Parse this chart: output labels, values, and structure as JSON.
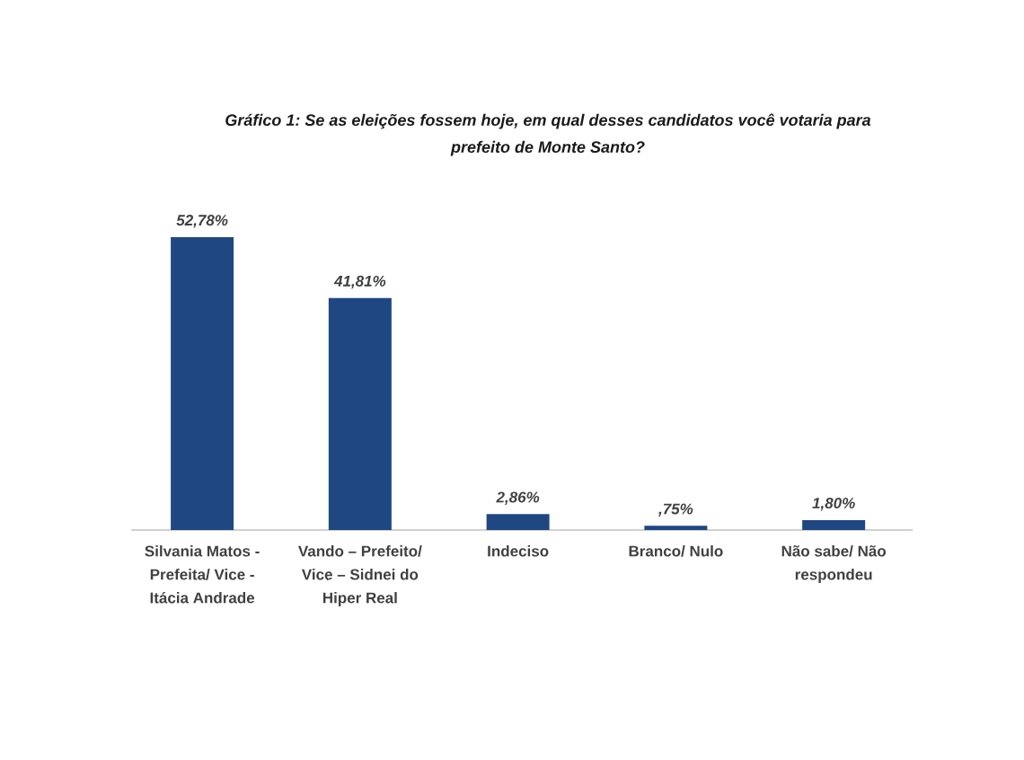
{
  "chart_data": {
    "type": "bar",
    "title": "Gráfico 1: Se as eleições fossem hoje, em qual desses candidatos você votaria para prefeito de Monte Santo?",
    "categories": [
      "Silvania Matos - Prefeita/ Vice - Itácia Andrade",
      "Vando – Prefeito/ Vice – Sidnei do Hiper Real",
      "Indeciso",
      "Branco/ Nulo",
      "Não sabe/ Não respondeu"
    ],
    "values": [
      52.78,
      41.81,
      2.86,
      0.75,
      1.8
    ],
    "value_labels": [
      "52,78%",
      "41,81%",
      "2,86%",
      ",75%",
      "1,80%"
    ],
    "color": "#1f4782"
  }
}
